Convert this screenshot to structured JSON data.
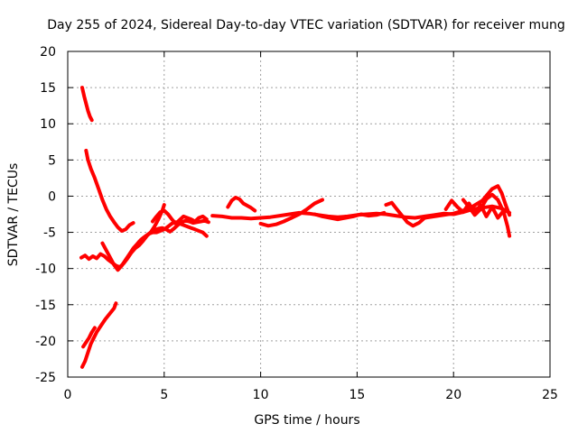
{
  "chart_data": {
    "type": "line",
    "title": "Day 255 of 2024, Sidereal Day-to-day VTEC variation (SDTVAR) for receiver mung",
    "xlabel": "GPS time / hours",
    "ylabel": "SDTVAR / TECUs",
    "xlim": [
      0,
      25
    ],
    "ylim": [
      -25,
      20
    ],
    "xticks": [
      "0",
      "5",
      "10",
      "15",
      "20",
      "25"
    ],
    "yticks": [
      "20",
      "15",
      "10",
      "5",
      "0",
      "-5",
      "-10",
      "-15",
      "-20",
      "-25"
    ],
    "grid": true,
    "line_color": "#ff0000",
    "series": [
      {
        "x": [
          0.75,
          0.85,
          0.95,
          1.05,
          1.15,
          1.25
        ],
        "y": [
          15.0,
          13.8,
          12.8,
          11.8,
          11.0,
          10.5
        ]
      },
      {
        "x": [
          0.95,
          1.05,
          1.2,
          1.4,
          1.6,
          1.8,
          2.0,
          2.2,
          2.4,
          2.6,
          2.8,
          3.0,
          3.2,
          3.4
        ],
        "y": [
          6.3,
          5.0,
          3.8,
          2.5,
          1.0,
          -0.5,
          -1.8,
          -2.8,
          -3.6,
          -4.3,
          -4.8,
          -4.6,
          -4.0,
          -3.7
        ]
      },
      {
        "x": [
          0.7,
          0.9,
          1.1,
          1.3,
          1.5,
          1.7,
          1.9,
          2.1,
          2.3,
          2.5,
          2.7,
          2.9,
          3.1,
          3.3,
          3.5,
          3.7,
          3.9,
          4.1,
          4.3,
          4.5,
          4.7,
          4.9,
          5.0
        ],
        "y": [
          -8.5,
          -8.2,
          -8.7,
          -8.3,
          -8.6,
          -8.0,
          -8.3,
          -8.8,
          -9.2,
          -9.6,
          -9.8,
          -9.3,
          -8.6,
          -7.8,
          -7.2,
          -6.8,
          -6.2,
          -5.5,
          -5.0,
          -4.2,
          -3.2,
          -2.0,
          -1.2
        ]
      },
      {
        "x": [
          1.8,
          2.0,
          2.2,
          2.4,
          2.6,
          2.8,
          3.0,
          3.2,
          3.4,
          3.6,
          3.8,
          4.0,
          4.2,
          4.4,
          4.6,
          4.8,
          5.0,
          5.2,
          5.4,
          5.6,
          5.8,
          6.0,
          6.2,
          6.4,
          6.6,
          6.8,
          7.0,
          7.2
        ],
        "y": [
          -6.5,
          -7.5,
          -8.5,
          -9.5,
          -10.2,
          -9.6,
          -8.8,
          -8.0,
          -7.2,
          -6.6,
          -6.0,
          -5.6,
          -5.2,
          -5.0,
          -5.0,
          -4.8,
          -4.6,
          -4.2,
          -3.8,
          -3.6,
          -3.8,
          -4.0,
          -4.2,
          -4.4,
          -4.6,
          -4.8,
          -5.0,
          -5.5
        ]
      },
      {
        "x": [
          3.5,
          3.7,
          3.9,
          4.1,
          4.3,
          4.5,
          4.7,
          4.9,
          5.1,
          5.3,
          5.5,
          5.7,
          5.9,
          6.1,
          6.3,
          6.5,
          6.7,
          6.9,
          7.1,
          7.3
        ],
        "y": [
          -7.0,
          -6.3,
          -5.8,
          -5.4,
          -5.0,
          -4.7,
          -4.5,
          -4.4,
          -4.6,
          -4.9,
          -4.5,
          -4.0,
          -3.6,
          -3.4,
          -3.5,
          -3.7,
          -3.6,
          -3.5,
          -3.4,
          -3.6
        ]
      },
      {
        "x": [
          4.4,
          4.6,
          4.8,
          5.0,
          5.2,
          5.4,
          5.6,
          5.8,
          6.0,
          6.2,
          6.4,
          6.6,
          6.8,
          7.0,
          7.2
        ],
        "y": [
          -3.5,
          -2.8,
          -2.2,
          -2.0,
          -2.5,
          -3.2,
          -3.8,
          -3.3,
          -2.8,
          -3.0,
          -3.2,
          -3.5,
          -3.0,
          -2.8,
          -3.2
        ]
      },
      {
        "x": [
          0.75,
          0.9,
          1.05,
          1.2,
          1.35,
          1.5,
          1.65,
          1.8,
          1.95,
          2.1,
          2.25,
          2.4,
          2.5
        ],
        "y": [
          -23.6,
          -22.8,
          -21.6,
          -20.4,
          -19.6,
          -18.8,
          -18.2,
          -17.6,
          -17.0,
          -16.5,
          -16.0,
          -15.5,
          -14.8
        ]
      },
      {
        "x": [
          0.8,
          0.95,
          1.1,
          1.25,
          1.4
        ],
        "y": [
          -20.8,
          -20.2,
          -19.6,
          -18.8,
          -18.2
        ]
      },
      {
        "x": [
          7.5,
          8.0,
          8.5,
          9.0,
          9.5,
          10.0,
          10.5,
          11.0,
          11.5,
          12.0,
          12.5,
          13.0,
          13.5,
          14.0,
          14.5,
          15.0,
          15.5,
          16.0,
          16.5,
          17.0,
          17.5,
          18.0,
          18.5,
          19.0,
          19.5,
          20.0,
          20.5,
          21.0,
          21.5,
          22.0,
          22.5,
          22.9
        ],
        "y": [
          -2.7,
          -2.8,
          -3.0,
          -3.0,
          -3.1,
          -3.0,
          -2.9,
          -2.7,
          -2.5,
          -2.3,
          -2.4,
          -2.6,
          -2.8,
          -2.9,
          -2.8,
          -2.6,
          -2.5,
          -2.4,
          -2.5,
          -2.7,
          -2.9,
          -3.0,
          -2.8,
          -2.6,
          -2.4,
          -2.5,
          -2.2,
          -1.8,
          -1.6,
          -1.4,
          -1.7,
          -2.3
        ]
      },
      {
        "x": [
          8.3,
          8.5,
          8.7,
          8.9,
          9.1,
          9.3,
          9.5,
          9.7
        ],
        "y": [
          -1.5,
          -0.6,
          -0.2,
          -0.4,
          -1.0,
          -1.3,
          -1.6,
          -2.0
        ]
      },
      {
        "x": [
          10.0,
          10.4,
          10.8,
          11.2,
          11.6,
          12.0,
          12.4,
          12.8,
          13.2
        ],
        "y": [
          -3.8,
          -4.1,
          -3.9,
          -3.5,
          -3.0,
          -2.5,
          -1.8,
          -1.0,
          -0.5
        ]
      },
      {
        "x": [
          12.8,
          13.2,
          13.6,
          14.0,
          14.4,
          14.8,
          15.2,
          15.6,
          16.0,
          16.4
        ],
        "y": [
          -2.5,
          -2.8,
          -3.0,
          -3.2,
          -3.0,
          -2.8,
          -2.5,
          -2.7,
          -2.6,
          -2.3
        ]
      },
      {
        "x": [
          16.5,
          16.8,
          17.0,
          17.3,
          17.6,
          17.9,
          18.2,
          18.5,
          18.8,
          19.1
        ],
        "y": [
          -1.2,
          -0.9,
          -1.6,
          -2.6,
          -3.6,
          -4.1,
          -3.7,
          -3.0,
          -2.8,
          -2.6
        ]
      },
      {
        "x": [
          18.5,
          19.0,
          19.5,
          20.0,
          20.5,
          21.0,
          21.5,
          22.0,
          22.3,
          22.5,
          22.7,
          22.9
        ],
        "y": [
          -3.0,
          -2.8,
          -2.6,
          -2.4,
          -2.0,
          -1.4,
          -0.6,
          1.0,
          1.4,
          0.4,
          -1.2,
          -2.6
        ]
      },
      {
        "x": [
          20.5,
          20.8,
          21.1,
          21.4,
          21.7,
          22.0,
          22.3,
          22.6,
          22.8,
          22.9
        ],
        "y": [
          -0.5,
          -1.5,
          -2.6,
          -1.8,
          -0.4,
          0.2,
          -0.5,
          -2.2,
          -4.2,
          -5.5
        ]
      },
      {
        "x": [
          19.6,
          19.9,
          20.2,
          20.5,
          20.8,
          21.1,
          21.4,
          21.7,
          22.0,
          22.3,
          22.6
        ],
        "y": [
          -1.8,
          -0.6,
          -1.5,
          -2.2,
          -1.0,
          -2.4,
          -1.2,
          -2.8,
          -1.5,
          -3.0,
          -2.0
        ]
      }
    ]
  }
}
